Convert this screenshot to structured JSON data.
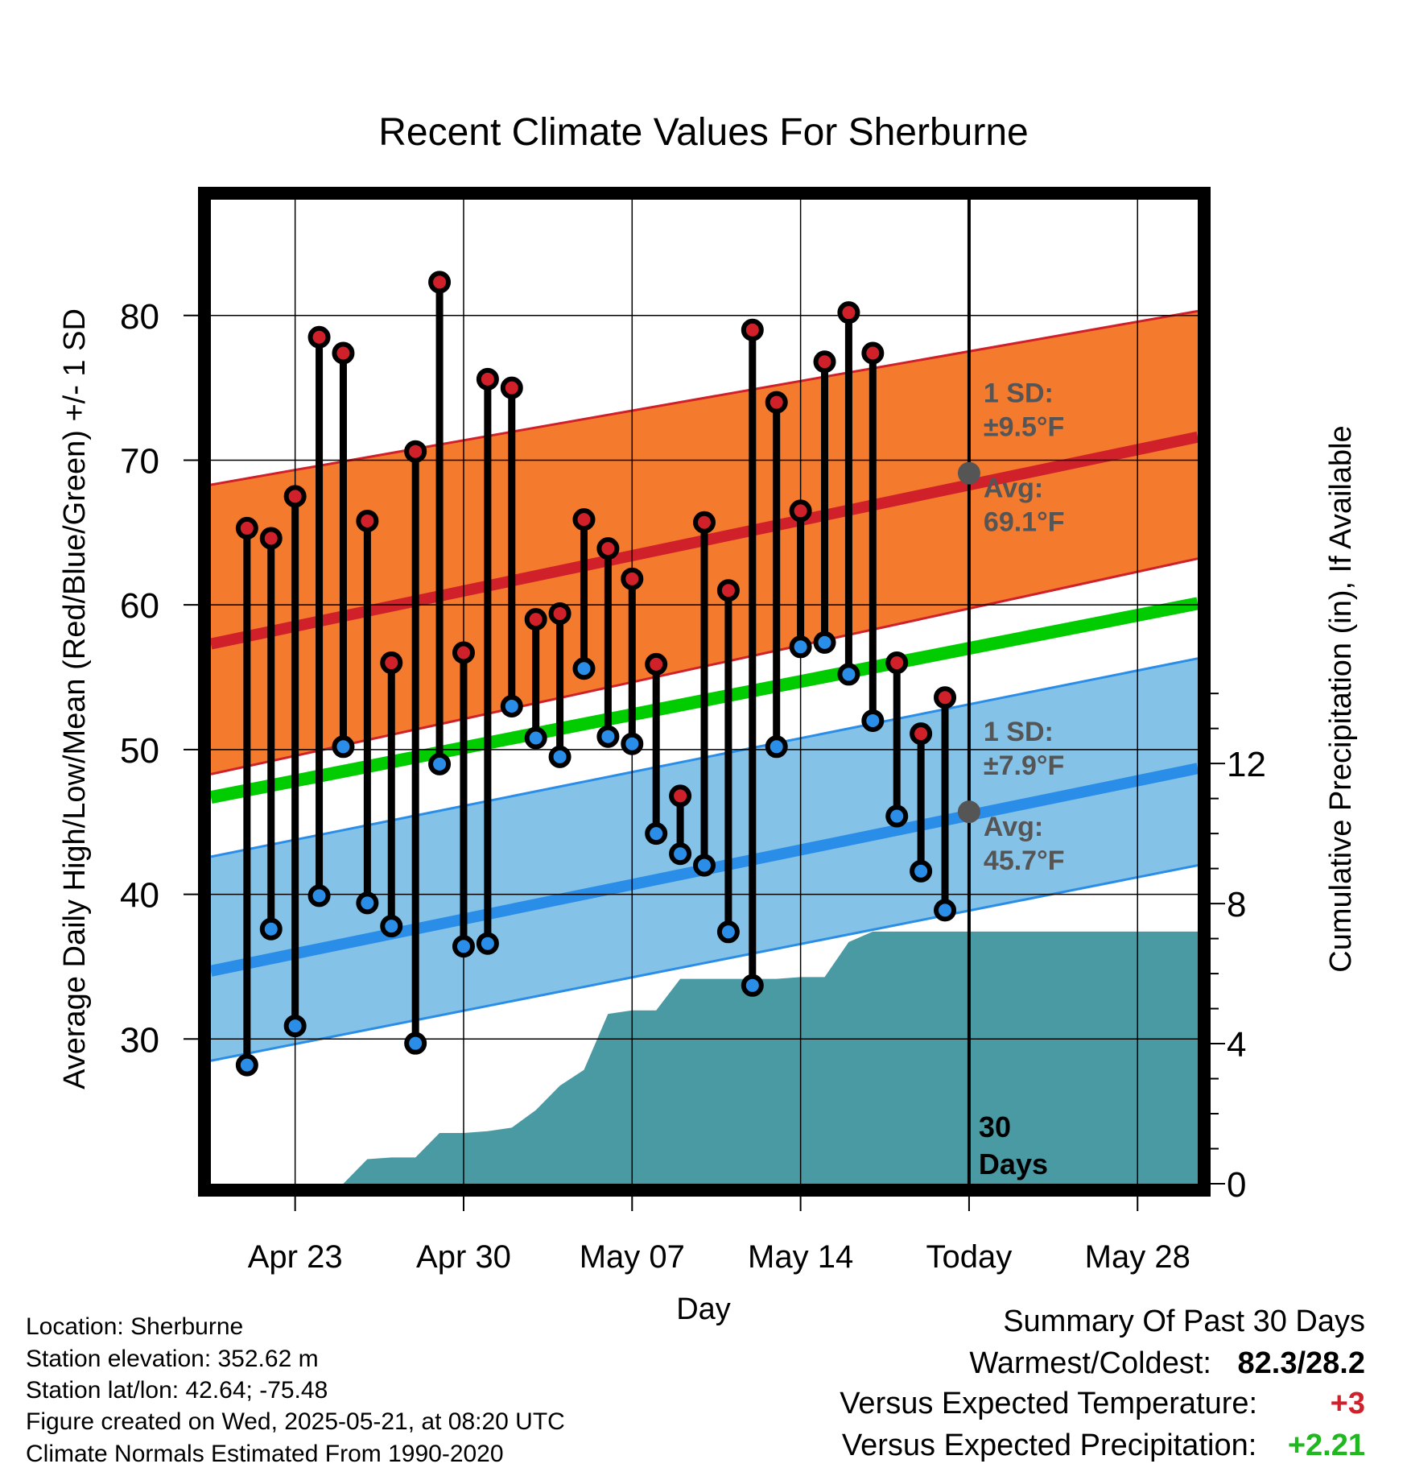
{
  "chart_data": {
    "type": "line",
    "title": "Recent Climate Values For Sherburne",
    "xlabel": "Day",
    "ylabel": "Average Daily High/Low/Mean (Red/Blue/Green) +/- 1 SD",
    "ylabel2": "Cumulative Precipitation (in), If Available",
    "ylim": [
      20,
      88
    ],
    "ylim2": [
      0,
      28.1
    ],
    "y_ticks": [
      30,
      40,
      50,
      60,
      70,
      80
    ],
    "y2_ticks": [
      0,
      4,
      8,
      12
    ],
    "x_tick_labels": [
      "Apr 23",
      "Apr 30",
      "May 07",
      "May 14",
      "Today",
      "May 28"
    ],
    "x_tick_days": [
      23,
      30,
      37,
      44,
      51,
      58
    ],
    "x_range": [
      19.5,
      60.5
    ],
    "today_day": 51,
    "today_label": [
      "30",
      "Days"
    ],
    "normals": {
      "days": [
        19.5,
        60.5
      ],
      "high_mean": [
        57.3,
        71.6
      ],
      "high_upper": [
        68.3,
        80.3
      ],
      "high_lower": [
        48.3,
        63.2
      ],
      "mean": [
        46.7,
        60.1
      ],
      "low_mean": [
        34.7,
        48.7
      ],
      "low_upper": [
        42.6,
        56.3
      ],
      "low_lower": [
        28.5,
        42.0
      ]
    },
    "high_annotation": {
      "sd": "1 SD:",
      "sd_value": "±9.5°F",
      "avg": "Avg:",
      "avg_value": "69.1°F",
      "y": 69.1
    },
    "low_annotation": {
      "sd": "1 SD:",
      "sd_value": "±7.9°F",
      "avg": "Avg:",
      "avg_value": "45.7°F",
      "y": 45.7
    },
    "series": [
      {
        "name": "High",
        "color": "#d0202a",
        "days": [
          21,
          22,
          23,
          24,
          25,
          26,
          27,
          28,
          29,
          30,
          31,
          32,
          33,
          34,
          35,
          36,
          37,
          38,
          39,
          40,
          41,
          42,
          43,
          44,
          45,
          46,
          47,
          48,
          49,
          50
        ],
        "values": [
          65.3,
          64.6,
          67.5,
          78.5,
          77.4,
          65.8,
          56.0,
          70.6,
          82.3,
          56.7,
          75.6,
          75.0,
          59.0,
          59.4,
          65.9,
          63.9,
          61.8,
          55.9,
          46.8,
          65.7,
          61.0,
          79.0,
          74.0,
          66.5,
          76.8,
          80.2,
          77.4,
          56.0,
          51.1,
          53.6
        ]
      },
      {
        "name": "Low",
        "color": "#2a8ee8",
        "days": [
          21,
          22,
          23,
          24,
          25,
          26,
          27,
          28,
          29,
          30,
          31,
          32,
          33,
          34,
          35,
          36,
          37,
          38,
          39,
          40,
          41,
          42,
          43,
          44,
          45,
          46,
          47,
          48,
          49,
          50
        ],
        "values": [
          28.2,
          37.6,
          30.9,
          39.9,
          50.2,
          39.4,
          37.8,
          29.7,
          49.0,
          36.4,
          36.6,
          53.0,
          50.8,
          49.5,
          55.6,
          50.9,
          50.4,
          44.2,
          42.8,
          42.0,
          37.4,
          33.7,
          50.2,
          57.1,
          57.4,
          55.2,
          52.0,
          45.4,
          41.6,
          38.9
        ]
      },
      {
        "name": "Precipitation",
        "color": "#4a9aa3",
        "days": [
          19.5,
          21,
          22,
          23,
          24,
          25,
          26,
          27,
          28,
          29,
          30,
          31,
          32,
          33,
          34,
          35,
          36,
          37,
          38,
          39,
          40,
          41,
          42,
          43,
          44,
          45,
          46,
          47,
          48,
          49,
          50,
          51,
          60.5
        ],
        "values": [
          0,
          0,
          0,
          0,
          0,
          0,
          0.7,
          0.75,
          0.75,
          1.45,
          1.45,
          1.5,
          1.6,
          2.1,
          2.8,
          3.25,
          4.85,
          4.95,
          4.95,
          5.85,
          5.85,
          5.85,
          5.85,
          5.85,
          5.9,
          5.9,
          6.9,
          7.2,
          7.2,
          7.2,
          7.2,
          7.2,
          7.2
        ]
      }
    ]
  },
  "footer": {
    "location": "Location: Sherburne",
    "elevation": "Station elevation: 352.62 m",
    "latlon": "Station lat/lon: 42.64; -75.48",
    "created": "Figure created on Wed, 2025-05-21, at 08:20 UTC",
    "normals": "Climate Normals Estimated From 1990-2020"
  },
  "summary": {
    "title": "Summary Of Past 30 Days",
    "warm_cold_label": "Warmest/Coldest:",
    "warm_cold_value": "82.3/28.2",
    "temp_label": "Versus Expected Temperature:",
    "temp_value": "+3",
    "temp_color": "#d0202a",
    "precip_label": "Versus Expected Precipitation:",
    "precip_value": "+2.21",
    "precip_color": "#1fb81f"
  },
  "colors": {
    "high_band": "#f47a2e",
    "high_line": "#d0202a",
    "low_band": "#85c2e8",
    "low_line": "#2a8ee8",
    "mean_line": "#00cc00",
    "precip_fill": "#4a9aa3"
  }
}
